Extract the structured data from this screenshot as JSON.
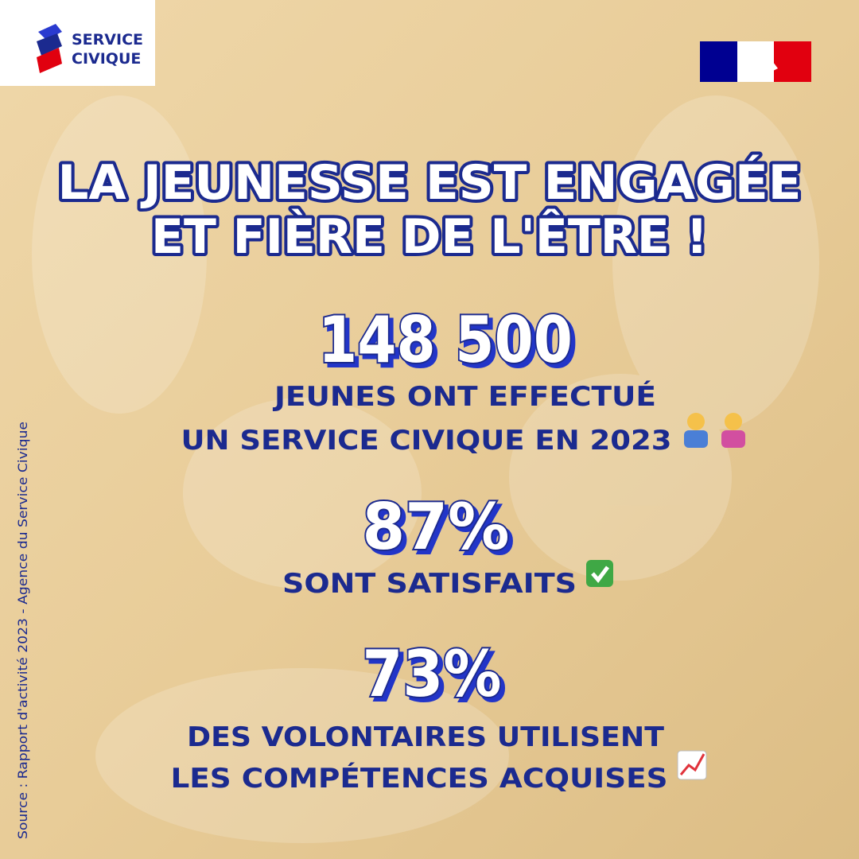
{
  "logo": {
    "line1": "SERVICE",
    "line2": "CIVIQUE"
  },
  "title": {
    "line1": "LA JEUNESSE EST ENGAGÉE",
    "line2": "ET FIÈRE DE L'ÊTRE !"
  },
  "stats": [
    {
      "figure": "148 500",
      "caption": [
        "JEUNES ONT EFFECTUÉ",
        "UN SERVICE CIVIQUE EN 2023"
      ]
    },
    {
      "figure": "87%",
      "caption": [
        "SONT SATISFAITS"
      ]
    },
    {
      "figure": "73%",
      "caption": [
        "DES VOLONTAIRES UTILISENT",
        "LES COMPÉTENCES ACQUISES"
      ]
    }
  ],
  "source": "Source : Rapport d'activité 2023 - Agence du Service Civique"
}
